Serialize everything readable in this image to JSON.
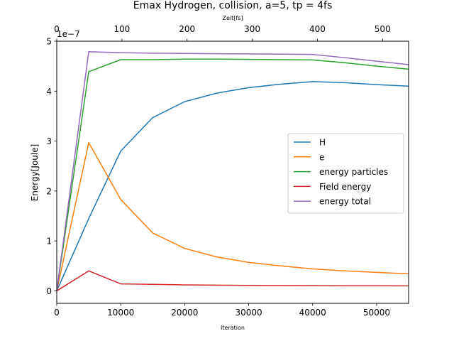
{
  "chart_data": {
    "type": "line",
    "title": "Emax Hydrogen, collision, a=5, tp = 4fs",
    "xlabel": "Iteration",
    "ylabel": "Energy[Joule]",
    "top_xlabel": "Zeit[fs]",
    "y_offset_label": "1e−7",
    "xlim": [
      0,
      55000
    ],
    "ylim": [
      -0.25,
      5.0
    ],
    "y_scale": 1e-07,
    "top_xlim": [
      0,
      540
    ],
    "x_ticks": [
      0,
      10000,
      20000,
      30000,
      40000,
      50000
    ],
    "x_tick_labels": [
      "0",
      "10000",
      "20000",
      "30000",
      "40000",
      "50000"
    ],
    "y_ticks": [
      0,
      1,
      2,
      3,
      4,
      5
    ],
    "y_tick_labels": [
      "0",
      "1",
      "2",
      "3",
      "4",
      "5"
    ],
    "top_x_ticks": [
      0,
      100,
      200,
      300,
      400,
      500
    ],
    "top_x_tick_labels": [
      "0",
      "100",
      "200",
      "300",
      "400",
      "500"
    ],
    "grid": false,
    "legend_position": "center-right",
    "series": [
      {
        "name": "H",
        "color": "#1f77b4",
        "x": [
          0,
          5000,
          10000,
          15000,
          20000,
          25000,
          30000,
          35000,
          40000,
          45000,
          50000,
          55000
        ],
        "y": [
          0.0,
          1.45,
          2.8,
          3.47,
          3.79,
          3.96,
          4.07,
          4.14,
          4.19,
          4.17,
          4.13,
          4.1
        ]
      },
      {
        "name": "e",
        "color": "#ff7f0e",
        "x": [
          0,
          5000,
          10000,
          15000,
          20000,
          25000,
          30000,
          35000,
          40000,
          45000,
          50000,
          55000
        ],
        "y": [
          0.0,
          2.97,
          1.83,
          1.16,
          0.85,
          0.68,
          0.57,
          0.5,
          0.44,
          0.4,
          0.37,
          0.34
        ]
      },
      {
        "name": "energy particles",
        "color": "#2ca02c",
        "x": [
          0,
          5000,
          10000,
          15000,
          20000,
          25000,
          30000,
          35000,
          40000,
          45000,
          50000,
          55000
        ],
        "y": [
          0.0,
          4.39,
          4.63,
          4.63,
          4.64,
          4.64,
          4.635,
          4.63,
          4.625,
          4.57,
          4.5,
          4.44
        ]
      },
      {
        "name": "Field energy",
        "color": "#d62728",
        "x": [
          0,
          5000,
          10000,
          15000,
          20000,
          25000,
          30000,
          35000,
          40000,
          45000,
          50000,
          55000
        ],
        "y": [
          0.0,
          0.4,
          0.14,
          0.13,
          0.12,
          0.115,
          0.11,
          0.107,
          0.105,
          0.103,
          0.102,
          0.1
        ]
      },
      {
        "name": "energy total",
        "color": "#9467bd",
        "x": [
          0,
          5000,
          10000,
          15000,
          20000,
          25000,
          30000,
          35000,
          40000,
          45000,
          50000,
          55000
        ],
        "y": [
          0.0,
          4.79,
          4.77,
          4.76,
          4.755,
          4.75,
          4.745,
          4.74,
          4.735,
          4.67,
          4.6,
          4.53
        ]
      }
    ]
  }
}
